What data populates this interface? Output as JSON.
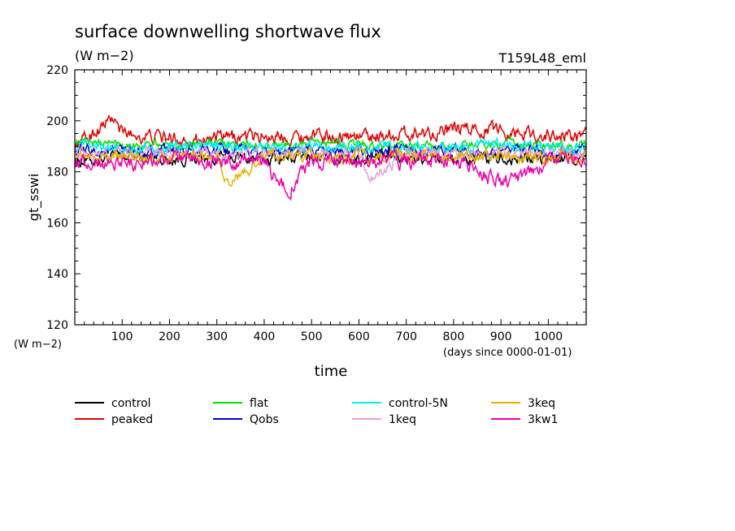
{
  "header": {
    "title": "surface downwelling shortwave flux",
    "units": "(W m−2)",
    "run_tag": "T159L48_eml"
  },
  "colors": {
    "control": "#000000",
    "peaked": "#e00000",
    "flat": "#00e000",
    "Qobs": "#0000cc",
    "control-5N": "#00eeee",
    "1keq": "#e6a0d8",
    "3keq": "#e8b000",
    "3kw1": "#ee00aa"
  },
  "chart_data": {
    "type": "line",
    "ylabel": "gt_sswi",
    "y_units_label": "(W m−2)",
    "xlabel": "time",
    "x_units_label": "(days since 0000-01-01)",
    "xlim": [
      0,
      1080
    ],
    "ylim": [
      120,
      220
    ],
    "x_ticks": [
      100,
      200,
      300,
      400,
      500,
      600,
      700,
      800,
      900,
      1000
    ],
    "y_ticks": [
      120,
      140,
      160,
      180,
      200,
      220
    ],
    "legend_placement": "below",
    "series": [
      {
        "name": "control",
        "key": "control",
        "mean": 185.5,
        "amplitude": 2.5,
        "points": [
          [
            0,
            184
          ],
          [
            100,
            186
          ],
          [
            200,
            185
          ],
          [
            300,
            186
          ],
          [
            400,
            185
          ],
          [
            500,
            186
          ],
          [
            600,
            185
          ],
          [
            700,
            186
          ],
          [
            800,
            185
          ],
          [
            900,
            185
          ],
          [
            1000,
            185
          ],
          [
            1080,
            185
          ]
        ]
      },
      {
        "name": "peaked",
        "key": "peaked",
        "mean": 193.5,
        "amplitude": 2.8,
        "points": [
          [
            0,
            190
          ],
          [
            80,
            201
          ],
          [
            100,
            195
          ],
          [
            200,
            193
          ],
          [
            300,
            193
          ],
          [
            400,
            194
          ],
          [
            500,
            194
          ],
          [
            600,
            194
          ],
          [
            700,
            195
          ],
          [
            780,
            196
          ],
          [
            880,
            197
          ],
          [
            1000,
            194
          ],
          [
            1080,
            194
          ]
        ]
      },
      {
        "name": "flat",
        "key": "flat",
        "mean": 190.5,
        "amplitude": 1.8,
        "points": [
          [
            0,
            192
          ],
          [
            100,
            191
          ],
          [
            200,
            190
          ],
          [
            300,
            191
          ],
          [
            400,
            190
          ],
          [
            500,
            191
          ],
          [
            600,
            191
          ],
          [
            700,
            190
          ],
          [
            800,
            190
          ],
          [
            900,
            191
          ],
          [
            1000,
            190
          ],
          [
            1080,
            190
          ]
        ]
      },
      {
        "name": "Qobs",
        "key": "Qobs",
        "mean": 188.0,
        "amplitude": 2.2,
        "points": [
          [
            0,
            188
          ],
          [
            100,
            188
          ],
          [
            200,
            188
          ],
          [
            300,
            188
          ],
          [
            400,
            188
          ],
          [
            500,
            188
          ],
          [
            600,
            188
          ],
          [
            700,
            188
          ],
          [
            800,
            188
          ],
          [
            900,
            188
          ],
          [
            1000,
            188
          ],
          [
            1080,
            188
          ]
        ]
      },
      {
        "name": "control-5N",
        "key": "control-5N",
        "mean": 189.5,
        "amplitude": 2.2,
        "points": [
          [
            0,
            190
          ],
          [
            100,
            189
          ],
          [
            200,
            189
          ],
          [
            300,
            190
          ],
          [
            400,
            189
          ],
          [
            500,
            190
          ],
          [
            600,
            190
          ],
          [
            700,
            189
          ],
          [
            800,
            189
          ],
          [
            900,
            190
          ],
          [
            1000,
            189
          ],
          [
            1080,
            189
          ]
        ]
      },
      {
        "name": "1keq",
        "key": "1keq",
        "mean": 187.0,
        "amplitude": 2.4,
        "points": [
          [
            0,
            187
          ],
          [
            100,
            187
          ],
          [
            200,
            187
          ],
          [
            300,
            187
          ],
          [
            400,
            187
          ],
          [
            500,
            187
          ],
          [
            600,
            187
          ],
          [
            625,
            177
          ],
          [
            700,
            187
          ],
          [
            800,
            187
          ],
          [
            900,
            187
          ],
          [
            1000,
            187
          ],
          [
            1080,
            187
          ]
        ]
      },
      {
        "name": "3keq",
        "key": "3keq",
        "mean": 186.0,
        "amplitude": 2.4,
        "points": [
          [
            0,
            186
          ],
          [
            100,
            186
          ],
          [
            200,
            186
          ],
          [
            300,
            186
          ],
          [
            325,
            175
          ],
          [
            400,
            186
          ],
          [
            500,
            186
          ],
          [
            600,
            186
          ],
          [
            700,
            186
          ],
          [
            800,
            186
          ],
          [
            900,
            186
          ],
          [
            1000,
            186
          ],
          [
            1080,
            186
          ]
        ]
      },
      {
        "name": "3kw1",
        "key": "3kw1",
        "mean": 184.5,
        "amplitude": 3.0,
        "points": [
          [
            0,
            184
          ],
          [
            100,
            184
          ],
          [
            200,
            184
          ],
          [
            300,
            184
          ],
          [
            400,
            184
          ],
          [
            450,
            172
          ],
          [
            500,
            184
          ],
          [
            600,
            184
          ],
          [
            700,
            184
          ],
          [
            800,
            184
          ],
          [
            900,
            175
          ],
          [
            1000,
            184
          ],
          [
            1080,
            184
          ]
        ]
      }
    ],
    "legend_order": [
      [
        "control",
        "flat",
        "control-5N",
        "3keq"
      ],
      [
        "peaked",
        "Qobs",
        "1keq",
        "3kw1"
      ]
    ]
  }
}
